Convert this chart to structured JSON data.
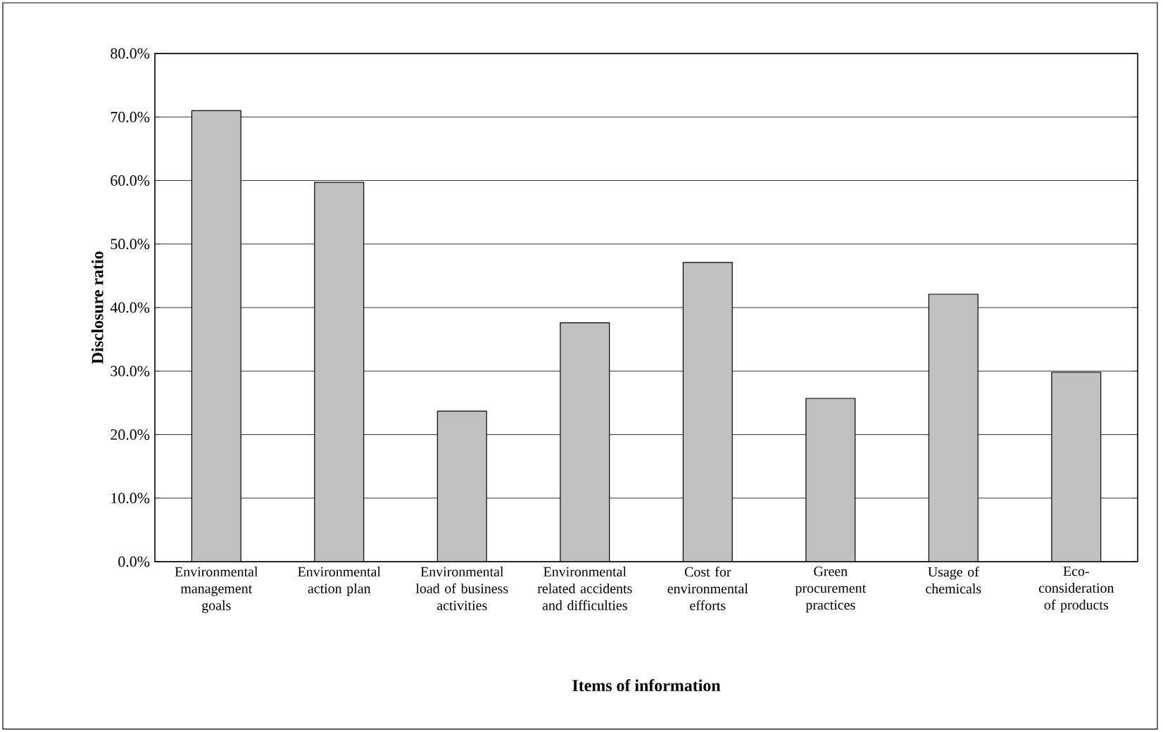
{
  "chart_data": {
    "type": "bar",
    "xlabel": "Items of information",
    "ylabel": "Disclosure ratio",
    "categories": [
      "Environmental management goals",
      "Environmental action plan",
      "Environmental load of business activities",
      "Environmental related accidents and difficulties",
      "Cost for environmental efforts",
      "Green procurement practices",
      "Usage of chemicals",
      "Eco-consideration of products"
    ],
    "values": [
      71.0,
      59.7,
      23.7,
      37.6,
      47.1,
      25.7,
      42.1,
      29.8
    ],
    "color": "#c0c0c0",
    "ylim": [
      0,
      80
    ],
    "yticks": [
      {
        "value": 0,
        "label": "0.0%"
      },
      {
        "value": 10,
        "label": "10.0%"
      },
      {
        "value": 20,
        "label": "20.0%"
      },
      {
        "value": 30,
        "label": "30.0%"
      },
      {
        "value": 40,
        "label": "40.0%"
      },
      {
        "value": 50,
        "label": "50.0%"
      },
      {
        "value": 60,
        "label": "60.0%"
      },
      {
        "value": 70,
        "label": "70.0%"
      },
      {
        "value": 80,
        "label": "80.0%"
      }
    ],
    "grid": "y"
  }
}
